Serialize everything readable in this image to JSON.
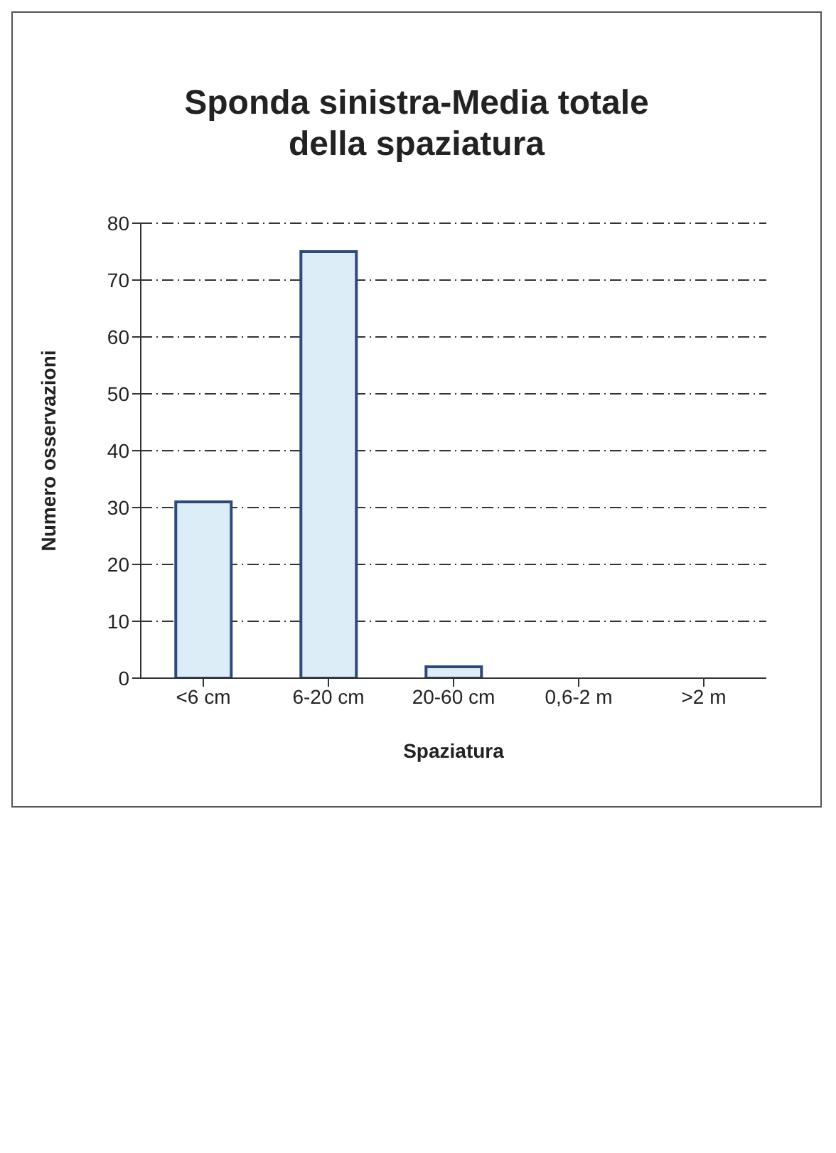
{
  "chart_data": {
    "type": "bar",
    "title": "Sponda sinistra-Media totale della spaziatura",
    "xlabel": "Spaziatura",
    "ylabel": "Numero osservazioni",
    "categories": [
      "<6 cm",
      "6-20 cm",
      "20-60 cm",
      "0,6-2 m",
      ">2 m"
    ],
    "values": [
      31,
      75,
      2,
      0,
      0
    ],
    "color": "#dcedf8",
    "ylim": [
      0,
      80
    ],
    "yticks": [
      0,
      10,
      20,
      30,
      40,
      50,
      60,
      70,
      80
    ],
    "grid": "y"
  }
}
